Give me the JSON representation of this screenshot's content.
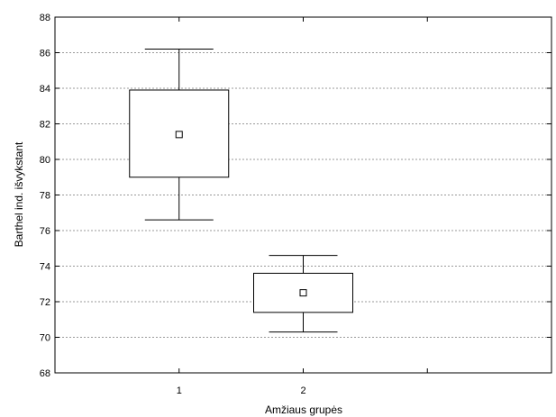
{
  "chart_data": {
    "type": "box",
    "title": "",
    "xlabel": "Amžiaus grupės",
    "ylabel": "Barthel ind. išvykstant",
    "categories": [
      "1",
      "2"
    ],
    "ylim": [
      68,
      88
    ],
    "yticks": [
      68,
      70,
      72,
      74,
      76,
      78,
      80,
      82,
      84,
      86,
      88
    ],
    "grid": {
      "horizontal": true,
      "style": "dashed"
    },
    "boxes": [
      {
        "category": "1",
        "whisker_low": 76.6,
        "box_low": 79.0,
        "center": 81.4,
        "box_high": 83.9,
        "whisker_high": 86.2
      },
      {
        "category": "2",
        "whisker_low": 70.3,
        "box_low": 71.4,
        "center": 72.5,
        "box_high": 73.6,
        "whisker_high": 74.6
      }
    ]
  }
}
